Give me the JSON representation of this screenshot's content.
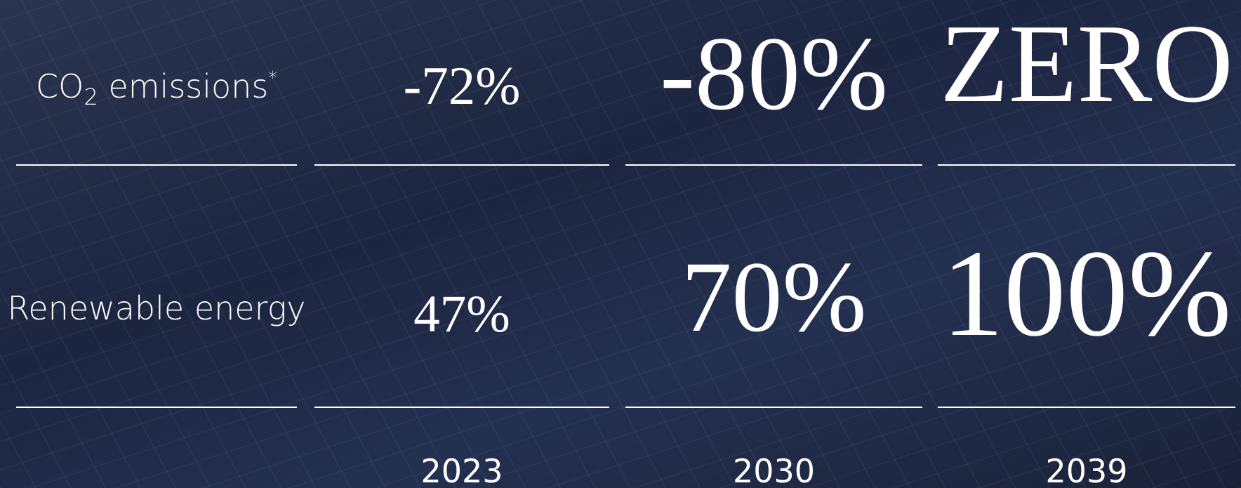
{
  "table": {
    "rows": [
      {
        "label_parts": [
          "CO",
          "2",
          " emissions",
          "*"
        ],
        "cells": [
          "-72%",
          "-80%",
          "ZERO"
        ]
      },
      {
        "label_parts": [
          "Renewable energy"
        ],
        "cells": [
          "47%",
          "70%",
          "100%"
        ]
      }
    ],
    "years": [
      "2023",
      "2030",
      "2039"
    ]
  }
}
